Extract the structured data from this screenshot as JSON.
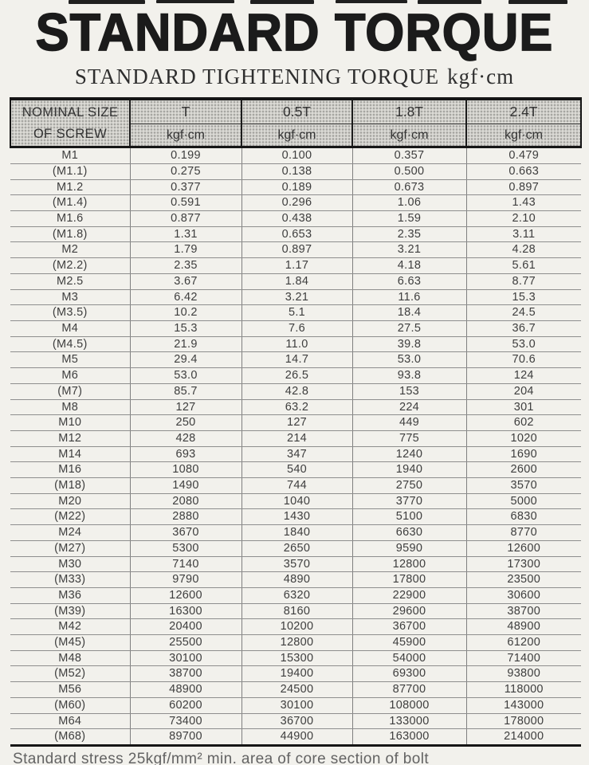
{
  "page": {
    "title": "STANDARD TORQUE",
    "subtitle_main": "STANDARD TIGHTENING TORQUE",
    "subtitle_unit": "kgf·cm",
    "footnote": "Standard stress 25kgf/mm²  min. area of core section of bolt"
  },
  "colors": {
    "paper": "#f2f1ec",
    "header_fill": "#dcdbd6",
    "row_line": "#8e8e8e",
    "frame_line": "#161616",
    "text": "#3e3e3e"
  },
  "table": {
    "corner_header_line1": "NOMINAL SIZE",
    "corner_header_line2": "OF SCREW",
    "columns": [
      {
        "label": "T",
        "unit": "kgf·cm"
      },
      {
        "label": "0.5T",
        "unit": "kgf·cm"
      },
      {
        "label": "1.8T",
        "unit": "kgf·cm"
      },
      {
        "label": "2.4T",
        "unit": "kgf·cm"
      }
    ],
    "rows": [
      {
        "size": "M1",
        "values": [
          "0.199",
          "0.100",
          "0.357",
          "0.479"
        ]
      },
      {
        "size": "(M1.1)",
        "values": [
          "0.275",
          "0.138",
          "0.500",
          "0.663"
        ]
      },
      {
        "size": "M1.2",
        "values": [
          "0.377",
          "0.189",
          "0.673",
          "0.897"
        ]
      },
      {
        "size": "(M1.4)",
        "values": [
          "0.591",
          "0.296",
          "1.06",
          "1.43"
        ]
      },
      {
        "size": "M1.6",
        "values": [
          "0.877",
          "0.438",
          "1.59",
          "2.10"
        ]
      },
      {
        "size": "(M1.8)",
        "values": [
          "1.31",
          "0.653",
          "2.35",
          "3.11"
        ]
      },
      {
        "size": "M2",
        "values": [
          "1.79",
          "0.897",
          "3.21",
          "4.28"
        ]
      },
      {
        "size": "(M2.2)",
        "values": [
          "2.35",
          "1.17",
          "4.18",
          "5.61"
        ]
      },
      {
        "size": "M2.5",
        "values": [
          "3.67",
          "1.84",
          "6.63",
          "8.77"
        ]
      },
      {
        "size": "M3",
        "values": [
          "6.42",
          "3.21",
          "11.6",
          "15.3"
        ]
      },
      {
        "size": "(M3.5)",
        "values": [
          "10.2",
          "5.1",
          "18.4",
          "24.5"
        ]
      },
      {
        "size": "M4",
        "values": [
          "15.3",
          "7.6",
          "27.5",
          "36.7"
        ]
      },
      {
        "size": "(M4.5)",
        "values": [
          "21.9",
          "11.0",
          "39.8",
          "53.0"
        ]
      },
      {
        "size": "M5",
        "values": [
          "29.4",
          "14.7",
          "53.0",
          "70.6"
        ]
      },
      {
        "size": "M6",
        "values": [
          "53.0",
          "26.5",
          "93.8",
          "124"
        ]
      },
      {
        "size": "(M7)",
        "values": [
          "85.7",
          "42.8",
          "153",
          "204"
        ]
      },
      {
        "size": "M8",
        "values": [
          "127",
          "63.2",
          "224",
          "301"
        ]
      },
      {
        "size": "M10",
        "values": [
          "250",
          "127",
          "449",
          "602"
        ]
      },
      {
        "size": "M12",
        "values": [
          "428",
          "214",
          "775",
          "1020"
        ]
      },
      {
        "size": "M14",
        "values": [
          "693",
          "347",
          "1240",
          "1690"
        ]
      },
      {
        "size": "M16",
        "values": [
          "1080",
          "540",
          "1940",
          "2600"
        ]
      },
      {
        "size": "(M18)",
        "values": [
          "1490",
          "744",
          "2750",
          "3570"
        ]
      },
      {
        "size": "M20",
        "values": [
          "2080",
          "1040",
          "3770",
          "5000"
        ]
      },
      {
        "size": "(M22)",
        "values": [
          "2880",
          "1430",
          "5100",
          "6830"
        ]
      },
      {
        "size": "M24",
        "values": [
          "3670",
          "1840",
          "6630",
          "8770"
        ]
      },
      {
        "size": "(M27)",
        "values": [
          "5300",
          "2650",
          "9590",
          "12600"
        ]
      },
      {
        "size": "M30",
        "values": [
          "7140",
          "3570",
          "12800",
          "17300"
        ]
      },
      {
        "size": "(M33)",
        "values": [
          "9790",
          "4890",
          "17800",
          "23500"
        ]
      },
      {
        "size": "M36",
        "values": [
          "12600",
          "6320",
          "22900",
          "30600"
        ]
      },
      {
        "size": "(M39)",
        "values": [
          "16300",
          "8160",
          "29600",
          "38700"
        ]
      },
      {
        "size": "M42",
        "values": [
          "20400",
          "10200",
          "36700",
          "48900"
        ]
      },
      {
        "size": "(M45)",
        "values": [
          "25500",
          "12800",
          "45900",
          "61200"
        ]
      },
      {
        "size": "M48",
        "values": [
          "30100",
          "15300",
          "54000",
          "71400"
        ]
      },
      {
        "size": "(M52)",
        "values": [
          "38700",
          "19400",
          "69300",
          "93800"
        ]
      },
      {
        "size": "M56",
        "values": [
          "48900",
          "24500",
          "87700",
          "118000"
        ]
      },
      {
        "size": "(M60)",
        "values": [
          "60200",
          "30100",
          "108000",
          "143000"
        ]
      },
      {
        "size": "M64",
        "values": [
          "73400",
          "36700",
          "133000",
          "178000"
        ]
      },
      {
        "size": "(M68)",
        "values": [
          "89700",
          "44900",
          "163000",
          "214000"
        ]
      }
    ]
  }
}
